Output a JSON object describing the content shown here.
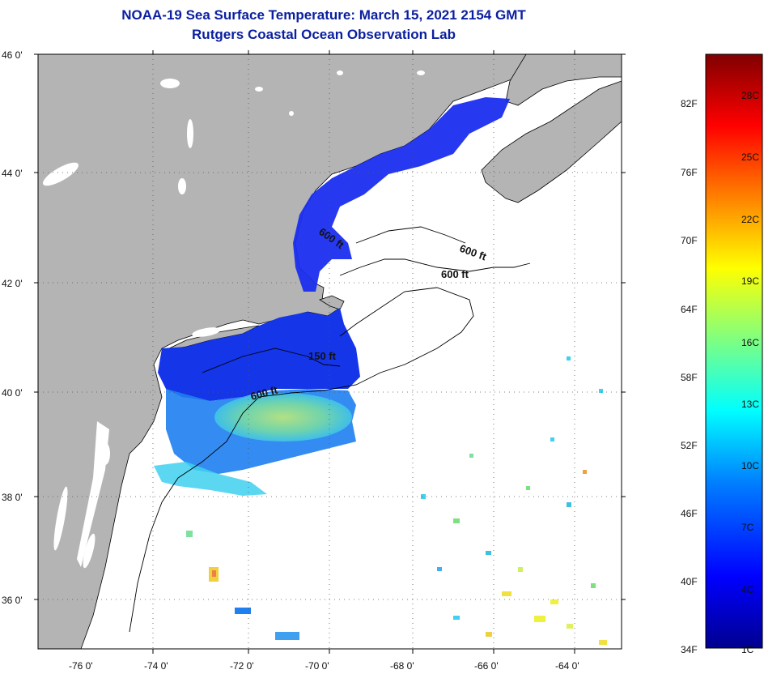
{
  "header": {
    "title": "NOAA-19 Sea Surface Temperature:  March 15, 2021 2154 GMT",
    "subtitle": "Rutgers Coastal Ocean Observation Lab"
  },
  "axes": {
    "lat_labels": [
      "46 0'",
      "44 0'",
      "42 0'",
      "40 0'",
      "38 0'",
      "36 0'"
    ],
    "lon_labels": [
      "-76 0'",
      "-74 0'",
      "-72 0'",
      "-70 0'",
      "-68 0'",
      "-66 0'",
      "-64 0'"
    ]
  },
  "contours": {
    "labels": [
      "600 ft",
      "600 ft",
      "600 ft",
      "150 ft",
      "600 ft"
    ]
  },
  "colorbar": {
    "fahrenheit": [
      "82F",
      "76F",
      "70F",
      "64F",
      "58F",
      "52F",
      "46F",
      "40F",
      "34F"
    ],
    "celsius": [
      "28C",
      "25C",
      "22C",
      "19C",
      "16C",
      "13C",
      "10C",
      "7C",
      "4C",
      "1C"
    ]
  },
  "colors": {
    "land": "#b4b4b4",
    "title": "#0a1fa0",
    "cold": "#0000d8",
    "warm": "#ffe000"
  }
}
